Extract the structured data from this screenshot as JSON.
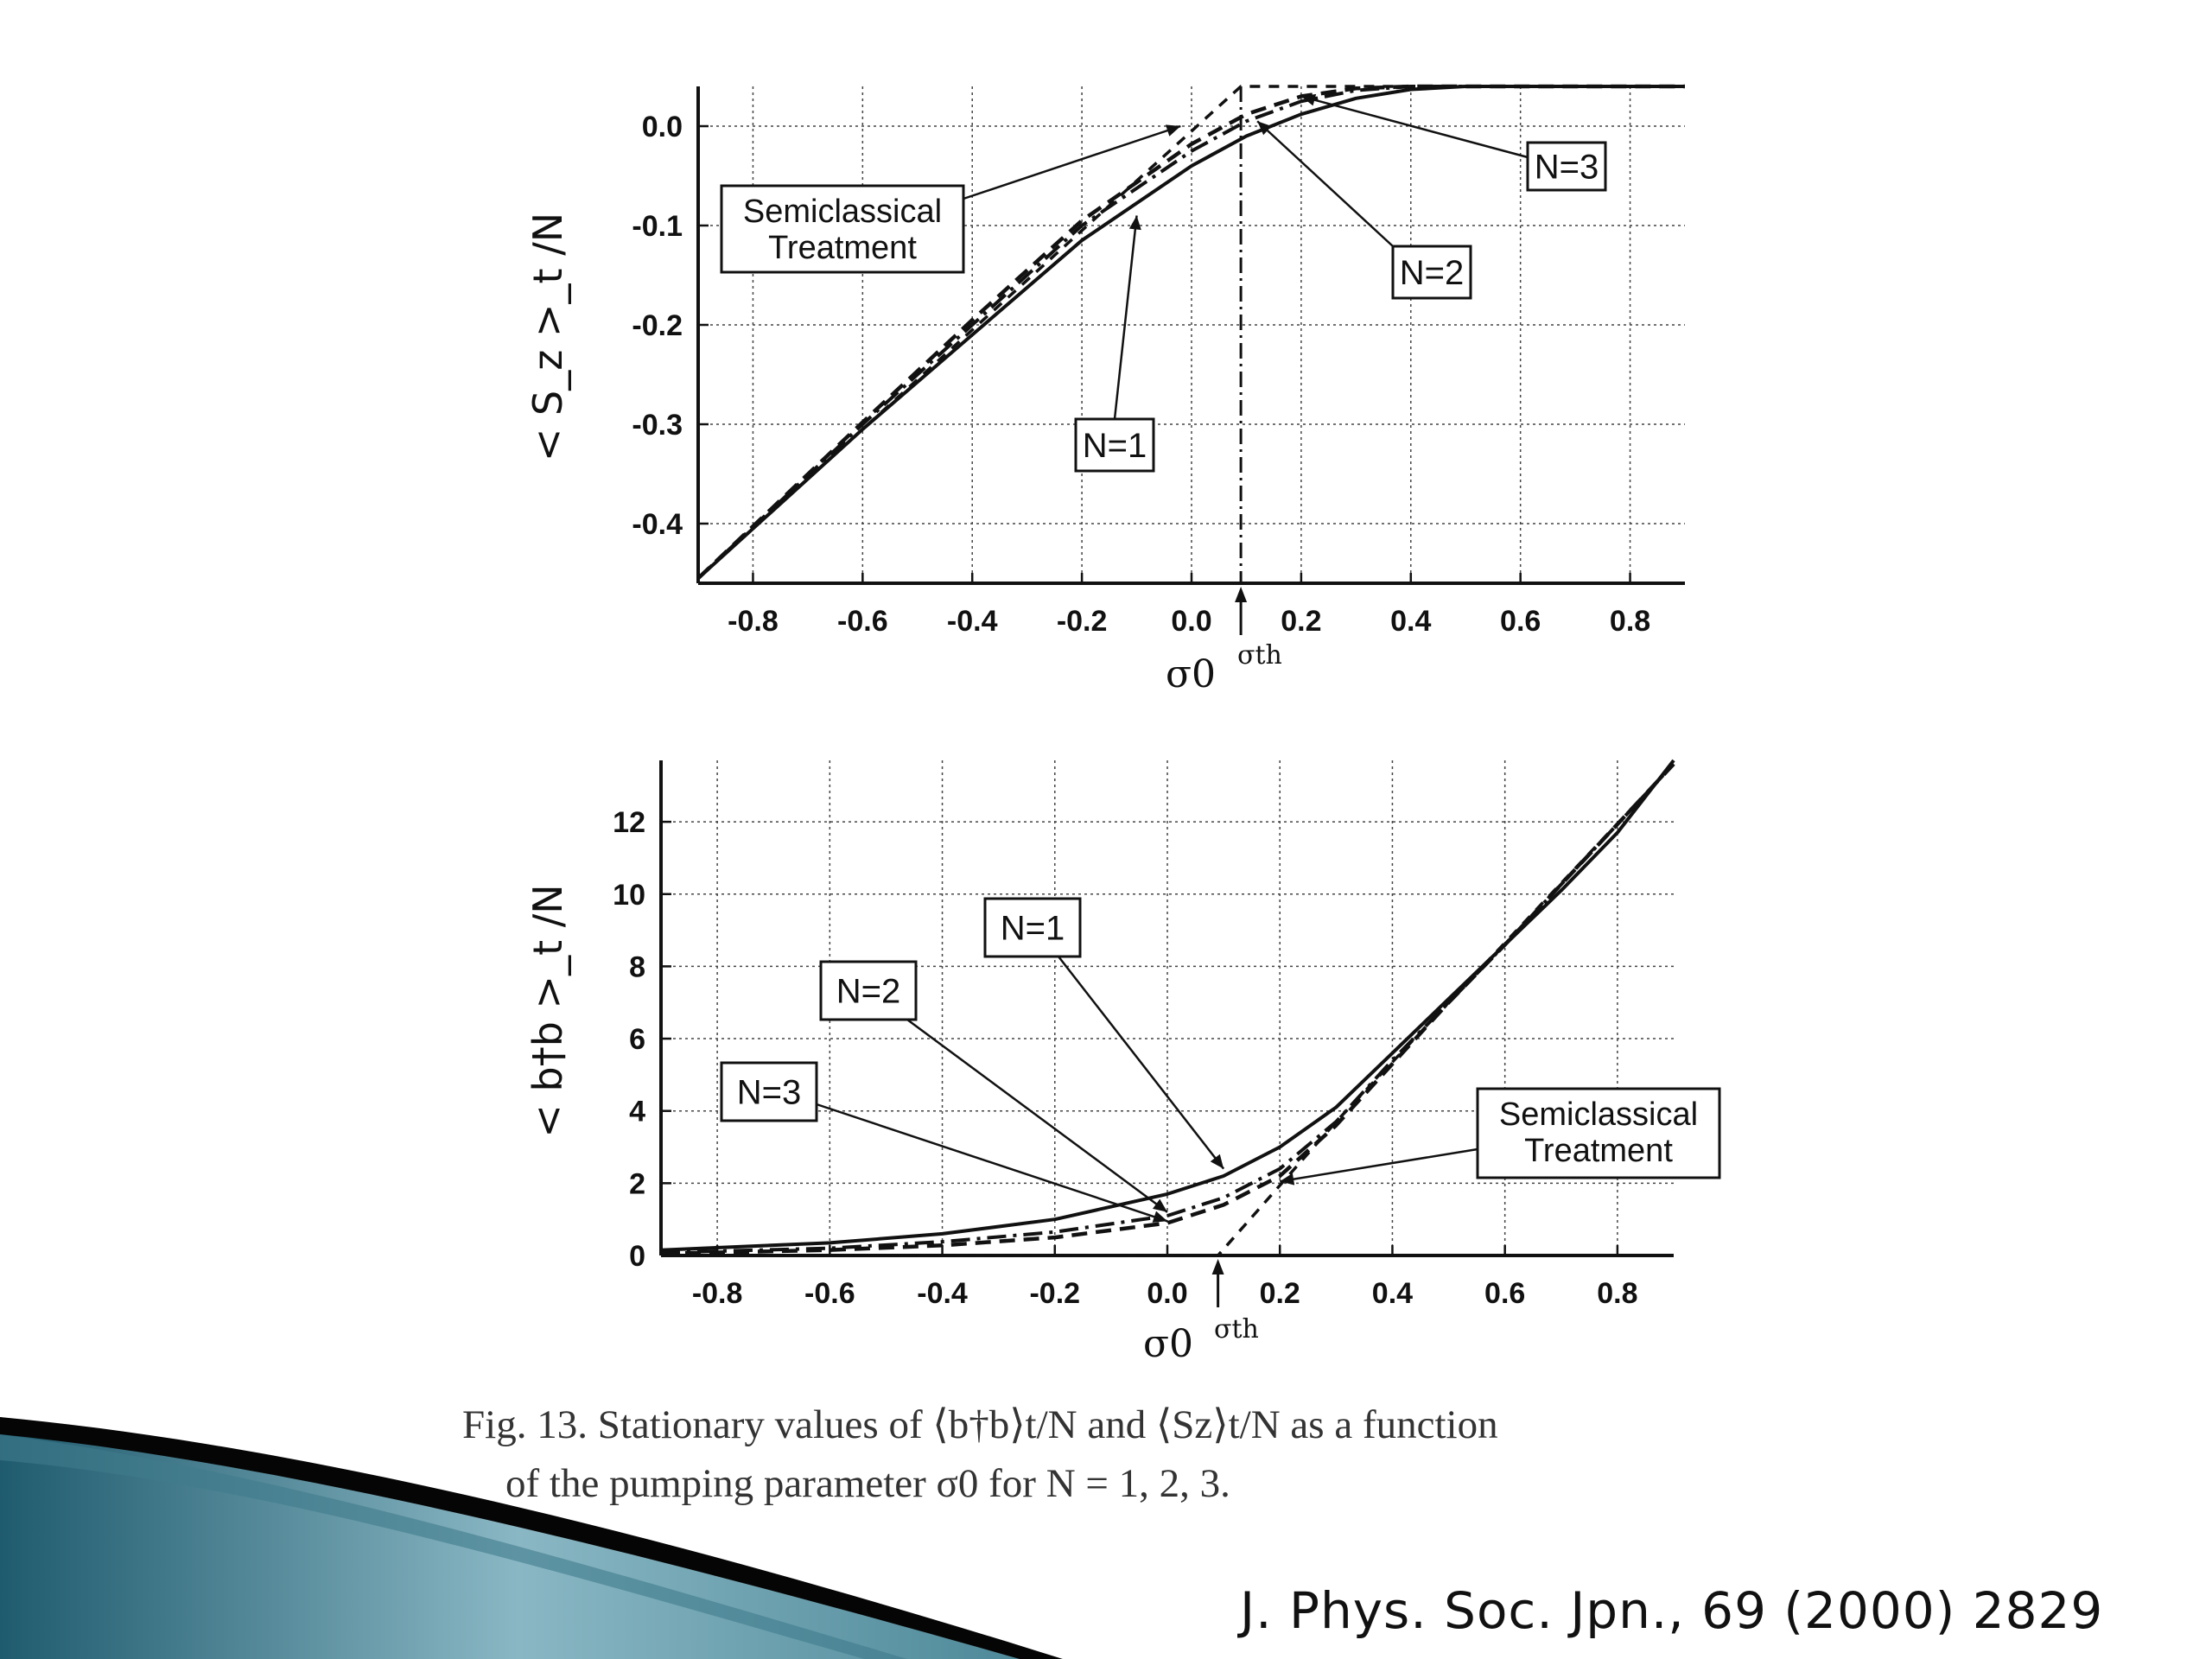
{
  "chart_data": [
    {
      "type": "line",
      "ylabel": "< S_z >_t /N",
      "xlabel": "σ0",
      "threshold_label": "σth",
      "threshold_x": 0.09,
      "xlim": [
        -0.9,
        0.9
      ],
      "ylim": [
        -0.46,
        0.04
      ],
      "xticks": [
        "-0.8",
        "-0.6",
        "-0.4",
        "-0.2",
        "0.0",
        "0.2",
        "0.4",
        "0.6",
        "0.8"
      ],
      "yticks": [
        "0.0",
        "-0.1",
        "-0.2",
        "-0.3",
        "-0.4"
      ],
      "grid": true,
      "series": [
        {
          "name": "N=1",
          "style": "solid",
          "x": [
            -0.9,
            -0.6,
            -0.4,
            -0.2,
            0.0,
            0.1,
            0.2,
            0.3,
            0.4,
            0.5,
            0.6,
            0.9
          ],
          "y": [
            -0.455,
            -0.305,
            -0.21,
            -0.115,
            -0.04,
            -0.01,
            0.012,
            0.028,
            0.037,
            0.04,
            0.04,
            0.04
          ]
        },
        {
          "name": "N=2",
          "style": "dashdot",
          "x": [
            -0.9,
            -0.6,
            -0.4,
            -0.2,
            0.0,
            0.1,
            0.2,
            0.3,
            0.4,
            0.5,
            0.9
          ],
          "y": [
            -0.455,
            -0.3,
            -0.2,
            -0.1,
            -0.025,
            0.005,
            0.025,
            0.036,
            0.04,
            0.04,
            0.04
          ]
        },
        {
          "name": "N=3",
          "style": "dashed",
          "x": [
            -0.9,
            -0.6,
            -0.4,
            -0.2,
            0.0,
            0.1,
            0.2,
            0.3,
            0.4,
            0.9
          ],
          "y": [
            -0.455,
            -0.298,
            -0.195,
            -0.095,
            -0.018,
            0.012,
            0.03,
            0.038,
            0.04,
            0.04
          ]
        },
        {
          "name": "Semiclassical Treatment",
          "style": "shortdash",
          "x": [
            -0.9,
            0.09,
            0.9
          ],
          "y": [
            -0.455,
            0.04,
            0.04
          ]
        }
      ],
      "annotations": [
        {
          "text": "Semiclassical\nTreatment",
          "points_to": [
            -0.02,
            0.0
          ]
        },
        {
          "text": "N=1",
          "points_to": [
            -0.1,
            -0.09
          ]
        },
        {
          "text": "N=2",
          "points_to": [
            0.12,
            0.005
          ]
        },
        {
          "text": "N=3",
          "points_to": [
            0.2,
            0.03
          ]
        }
      ]
    },
    {
      "type": "line",
      "ylabel": "< b†b >_t /N",
      "xlabel": "σ0",
      "threshold_label": "σth",
      "threshold_x": 0.09,
      "xlim": [
        -0.9,
        0.9
      ],
      "ylim": [
        0,
        13.7
      ],
      "xticks": [
        "-0.8",
        "-0.6",
        "-0.4",
        "-0.2",
        "0.0",
        "0.2",
        "0.4",
        "0.6",
        "0.8"
      ],
      "yticks": [
        "0",
        "2",
        "4",
        "6",
        "8",
        "10",
        "12"
      ],
      "grid": true,
      "series": [
        {
          "name": "N=1",
          "style": "solid",
          "x": [
            -0.9,
            -0.6,
            -0.4,
            -0.2,
            0.0,
            0.1,
            0.2,
            0.3,
            0.4,
            0.5,
            0.6,
            0.7,
            0.8,
            0.9
          ],
          "y": [
            0.15,
            0.35,
            0.6,
            1.0,
            1.7,
            2.2,
            3.0,
            4.1,
            5.6,
            7.1,
            8.6,
            10.1,
            11.7,
            13.7
          ]
        },
        {
          "name": "N=2",
          "style": "dashdot",
          "x": [
            -0.9,
            -0.6,
            -0.4,
            -0.2,
            0.0,
            0.1,
            0.2,
            0.3,
            0.4,
            0.5,
            0.6,
            0.9
          ],
          "y": [
            0.08,
            0.2,
            0.38,
            0.65,
            1.1,
            1.6,
            2.4,
            3.7,
            5.4,
            7.0,
            8.6,
            13.6
          ]
        },
        {
          "name": "N=3",
          "style": "dashed",
          "x": [
            -0.9,
            -0.6,
            -0.4,
            -0.2,
            0.0,
            0.1,
            0.2,
            0.3,
            0.4,
            0.5,
            0.6,
            0.9
          ],
          "y": [
            0.05,
            0.15,
            0.28,
            0.5,
            0.9,
            1.4,
            2.2,
            3.6,
            5.3,
            7.0,
            8.6,
            13.6
          ]
        },
        {
          "name": "Semiclassical Treatment",
          "style": "shortdash",
          "x": [
            -0.9,
            0.09,
            0.3,
            0.9
          ],
          "y": [
            0.0,
            0.0,
            3.7,
            13.6
          ]
        }
      ],
      "annotations": [
        {
          "text": "N=1",
          "points_to": [
            0.1,
            2.4
          ]
        },
        {
          "text": "N=2",
          "points_to": [
            0.0,
            1.2
          ]
        },
        {
          "text": "N=3",
          "points_to": [
            0.0,
            0.95
          ]
        },
        {
          "text": "Semiclassical\nTreatment",
          "points_to": [
            0.2,
            2.05
          ]
        }
      ]
    }
  ],
  "caption": {
    "line1": "Fig.  13.    Stationary values of ⟨b†b⟩t/N and ⟨Sz⟩t/N as a function",
    "line2": "of the pumping parameter σ0 for N = 1, 2, 3."
  },
  "citation": "J. Phys. Soc. Jpn., 69 (2000) 2829",
  "colors": {
    "ink": "#111111",
    "caption": "#333333",
    "slide_accent_1": "#1f5b6e",
    "slide_accent_2": "#8ab7c4"
  }
}
